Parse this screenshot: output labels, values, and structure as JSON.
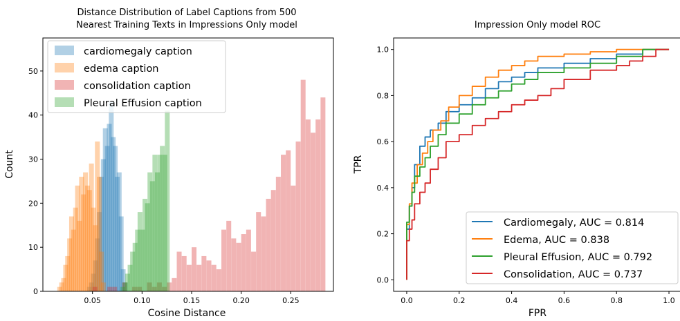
{
  "chart_data": [
    {
      "type": "histogram",
      "title_lines": [
        "Distance Distribution of Label Captions from 500",
        "Nearest Training Texts in Impressions Only model"
      ],
      "xlabel": "Cosine Distance",
      "ylabel": "Count",
      "xlim": [
        0.0,
        0.293
      ],
      "ylim": [
        0,
        57.5
      ],
      "xticks": [
        0.05,
        0.1,
        0.15,
        0.2,
        0.25
      ],
      "xtick_labels": [
        "0.05",
        "0.10",
        "0.15",
        "0.20",
        "0.25"
      ],
      "yticks": [
        0,
        10,
        20,
        30,
        40,
        50
      ],
      "ytick_labels": [
        "0",
        "10",
        "20",
        "30",
        "40",
        "50"
      ],
      "grid": false,
      "legend_position": "top-left",
      "bar_opacity": 0.35,
      "series": [
        {
          "name": "cardiomegaly caption",
          "color": "#1f77b4",
          "bins": [
            0.0445,
            0.0465,
            0.0485,
            0.0505,
            0.0525,
            0.0545,
            0.0565,
            0.0585,
            0.0605,
            0.0625,
            0.0645,
            0.0665,
            0.0685,
            0.0705,
            0.0725,
            0.0745,
            0.0765,
            0.0785,
            0.0805
          ],
          "counts": [
            1,
            2,
            4,
            7,
            12,
            18,
            26,
            30,
            37,
            33,
            38,
            43,
            35,
            33,
            26,
            27,
            17,
            5,
            2
          ]
        },
        {
          "name": "edema caption",
          "color": "#ff7f0e",
          "bins": [
            0.0145,
            0.0165,
            0.0185,
            0.0205,
            0.0225,
            0.0245,
            0.0265,
            0.0285,
            0.0305,
            0.0325,
            0.0345,
            0.0365,
            0.0385,
            0.0405,
            0.0425,
            0.0445,
            0.0465,
            0.0485,
            0.0505,
            0.0525,
            0.0545,
            0.0565,
            0.0585
          ],
          "counts": [
            1,
            2,
            3,
            6,
            8,
            12,
            17,
            14,
            19,
            24,
            16,
            26,
            22,
            27,
            24,
            23,
            29,
            19,
            15,
            34,
            26,
            9,
            2
          ]
        },
        {
          "name": "consolidation caption",
          "color": "#d62728",
          "bins": [
            0.05,
            0.065,
            0.07,
            0.08,
            0.09,
            0.095,
            0.105,
            0.11,
            0.115,
            0.12,
            0.125,
            0.13,
            0.135,
            0.14,
            0.145,
            0.15,
            0.155,
            0.16,
            0.165,
            0.17,
            0.175,
            0.18,
            0.185,
            0.19,
            0.195,
            0.2,
            0.205,
            0.21,
            0.215,
            0.22,
            0.225,
            0.23,
            0.235,
            0.24,
            0.245,
            0.25,
            0.255,
            0.26,
            0.265,
            0.27,
            0.275,
            0.28
          ],
          "counts": [
            1,
            1,
            1,
            2,
            1,
            1,
            2,
            1,
            2,
            1,
            2,
            3,
            9,
            8,
            6,
            10,
            6,
            8,
            7,
            6,
            5,
            14,
            16,
            12,
            11,
            13,
            14,
            9,
            18,
            17,
            21,
            23,
            26,
            31,
            32,
            24,
            34,
            48,
            39,
            36,
            39,
            44
          ]
        },
        {
          "name": "Pleural Effusion caption",
          "color": "#2ca02c",
          "bins": [
            0.078,
            0.0805,
            0.083,
            0.0855,
            0.088,
            0.0905,
            0.093,
            0.0955,
            0.098,
            0.1005,
            0.103,
            0.1055,
            0.108,
            0.1105,
            0.113,
            0.1155,
            0.118,
            0.1205,
            0.123
          ],
          "counts": [
            1,
            2,
            4,
            6,
            9,
            11,
            14,
            18,
            14,
            21,
            20,
            27,
            25,
            31,
            27,
            31,
            33,
            31,
            41
          ]
        }
      ],
      "bin_width": 0.0049
    },
    {
      "type": "line",
      "title": "Impression Only model ROC",
      "xlabel": "FPR",
      "ylabel": "TPR",
      "xlim": [
        -0.05,
        1.05
      ],
      "ylim": [
        -0.05,
        1.05
      ],
      "xticks": [
        0.0,
        0.2,
        0.4,
        0.6,
        0.8,
        1.0
      ],
      "xtick_labels": [
        "0.0",
        "0.2",
        "0.4",
        "0.6",
        "0.8",
        "1.0"
      ],
      "yticks": [
        0.0,
        0.2,
        0.4,
        0.6,
        0.8,
        1.0
      ],
      "ytick_labels": [
        "0.0",
        "0.2",
        "0.4",
        "0.6",
        "0.8",
        "1.0"
      ],
      "grid": false,
      "legend_position": "bottom-right",
      "series": [
        {
          "name": "Cardiomegaly, AUC = 0.814",
          "color": "#1f77b4",
          "x": [
            0,
            0,
            0.01,
            0.02,
            0.03,
            0.05,
            0.07,
            0.09,
            0.12,
            0.15,
            0.2,
            0.25,
            0.3,
            0.35,
            0.4,
            0.45,
            0.5,
            0.6,
            0.7,
            0.8,
            0.9,
            1.0
          ],
          "y": [
            0,
            0.1,
            0.22,
            0.32,
            0.4,
            0.5,
            0.58,
            0.62,
            0.65,
            0.68,
            0.73,
            0.76,
            0.79,
            0.83,
            0.86,
            0.88,
            0.9,
            0.92,
            0.94,
            0.96,
            0.98,
            1.0
          ]
        },
        {
          "name": "Edema, AUC = 0.838",
          "color": "#ff7f0e",
          "x": [
            0,
            0,
            0.01,
            0.02,
            0.04,
            0.06,
            0.08,
            0.1,
            0.13,
            0.16,
            0.2,
            0.25,
            0.3,
            0.35,
            0.4,
            0.45,
            0.5,
            0.6,
            0.7,
            0.8,
            0.9,
            1.0
          ],
          "y": [
            0,
            0.12,
            0.24,
            0.33,
            0.42,
            0.5,
            0.55,
            0.6,
            0.65,
            0.69,
            0.75,
            0.8,
            0.84,
            0.88,
            0.91,
            0.93,
            0.95,
            0.97,
            0.98,
            0.99,
            1.0,
            1.0
          ]
        },
        {
          "name": "Pleural Effusion, AUC = 0.792",
          "color": "#2ca02c",
          "x": [
            0,
            0,
            0.01,
            0.02,
            0.03,
            0.05,
            0.07,
            0.09,
            0.12,
            0.15,
            0.2,
            0.25,
            0.3,
            0.35,
            0.4,
            0.45,
            0.5,
            0.6,
            0.7,
            0.8,
            0.9,
            1.0
          ],
          "y": [
            0,
            0.14,
            0.25,
            0.32,
            0.38,
            0.45,
            0.49,
            0.53,
            0.58,
            0.63,
            0.68,
            0.72,
            0.76,
            0.79,
            0.82,
            0.85,
            0.87,
            0.9,
            0.92,
            0.94,
            0.97,
            1.0
          ]
        },
        {
          "name": "Consolidation, AUC = 0.737",
          "color": "#d62728",
          "x": [
            0,
            0,
            0.01,
            0.02,
            0.03,
            0.05,
            0.07,
            0.09,
            0.12,
            0.15,
            0.2,
            0.25,
            0.3,
            0.35,
            0.4,
            0.45,
            0.5,
            0.55,
            0.6,
            0.7,
            0.8,
            0.85,
            0.9,
            0.95,
            1.0
          ],
          "y": [
            0,
            0.08,
            0.17,
            0.22,
            0.26,
            0.33,
            0.38,
            0.42,
            0.48,
            0.53,
            0.6,
            0.63,
            0.67,
            0.7,
            0.73,
            0.76,
            0.78,
            0.8,
            0.83,
            0.87,
            0.91,
            0.93,
            0.95,
            0.97,
            1.0
          ]
        }
      ]
    }
  ]
}
